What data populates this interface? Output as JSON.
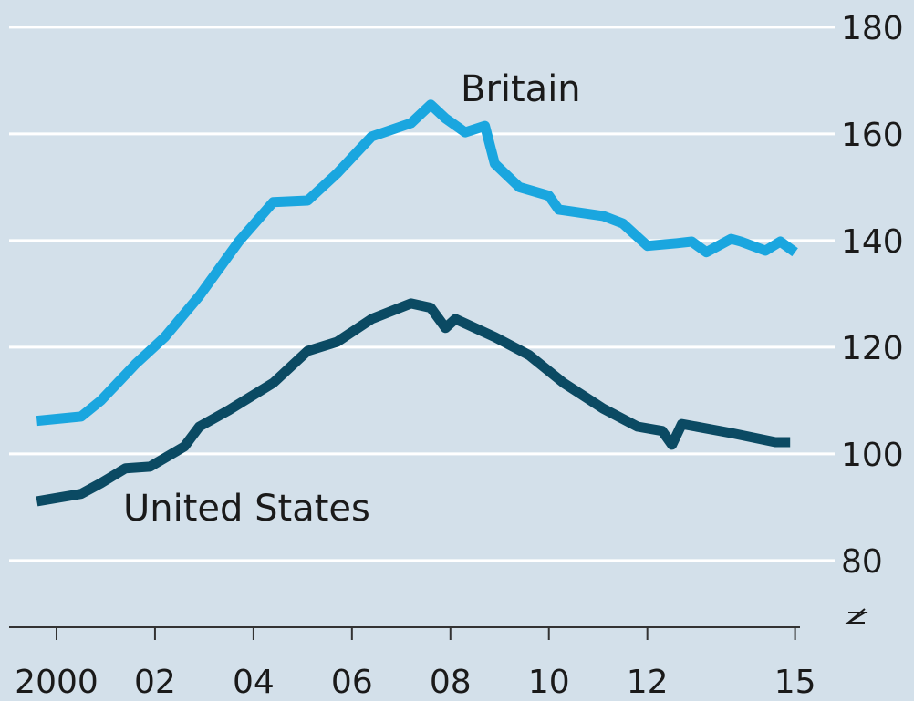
{
  "chart_data": {
    "type": "line",
    "series": [
      {
        "name": "Britain",
        "color": "#1aa6df",
        "x": [
          2000.1,
          2001,
          2001.4,
          2002.1,
          2002.7,
          2003.4,
          2004.2,
          2004.9,
          2005.6,
          2006.2,
          2006.9,
          2007.7,
          2008.1,
          2008.4,
          2008.8,
          2009.2,
          2009.4,
          2009.9,
          2010.5,
          2010.7,
          2011.6,
          2012,
          2012.5,
          2013.1,
          2013.4,
          2013.7,
          2014.2,
          2014.4,
          2014.9,
          2015.2,
          2015.5
        ],
        "values": [
          106.2,
          107,
          110,
          116.8,
          121.9,
          129.6,
          139.8,
          147.2,
          147.5,
          152.6,
          159.5,
          162,
          165.5,
          162.9,
          160.3,
          161.5,
          154.4,
          150,
          148.4,
          145.8,
          144.6,
          143.2,
          139,
          139.5,
          139.8,
          137.8,
          140.3,
          139.8,
          138.1,
          139.8,
          137.8
        ]
      },
      {
        "name": "United States",
        "color": "#0b4a63",
        "x": [
          2000.1,
          2001,
          2001.4,
          2001.9,
          2002.4,
          2003.1,
          2003.4,
          2004,
          2004.9,
          2005.6,
          2006.2,
          2006.9,
          2007.7,
          2008.1,
          2008.4,
          2008.6,
          2009.4,
          2010.1,
          2010.8,
          2011.6,
          2012.3,
          2012.8,
          2013,
          2013.2,
          2014.2,
          2015.1,
          2015.4
        ],
        "values": [
          91.1,
          92.5,
          94.5,
          97.3,
          97.6,
          101.4,
          105.1,
          108.2,
          113.3,
          119.3,
          121,
          125.3,
          128.2,
          127.4,
          123.6,
          125.3,
          121.9,
          118.5,
          113.3,
          108.5,
          105.1,
          104.3,
          101.7,
          105.6,
          103.9,
          102.2,
          102.2
        ]
      }
    ],
    "xlim": [
      2000,
      2015.6
    ],
    "xticks": [
      {
        "value": 2000.5,
        "label": "2000"
      },
      {
        "value": 2002.5,
        "label": "02"
      },
      {
        "value": 2004.5,
        "label": "04"
      },
      {
        "value": 2006.5,
        "label": "06"
      },
      {
        "value": 2008.5,
        "label": "08"
      },
      {
        "value": 2010.5,
        "label": "10"
      },
      {
        "value": 2012.5,
        "label": "12"
      },
      {
        "value": 2015.5,
        "label": "15"
      }
    ],
    "ylim": [
      67.5,
      185.1
    ],
    "yticks": [
      80,
      100,
      120,
      140,
      160,
      180
    ],
    "grid": true
  }
}
